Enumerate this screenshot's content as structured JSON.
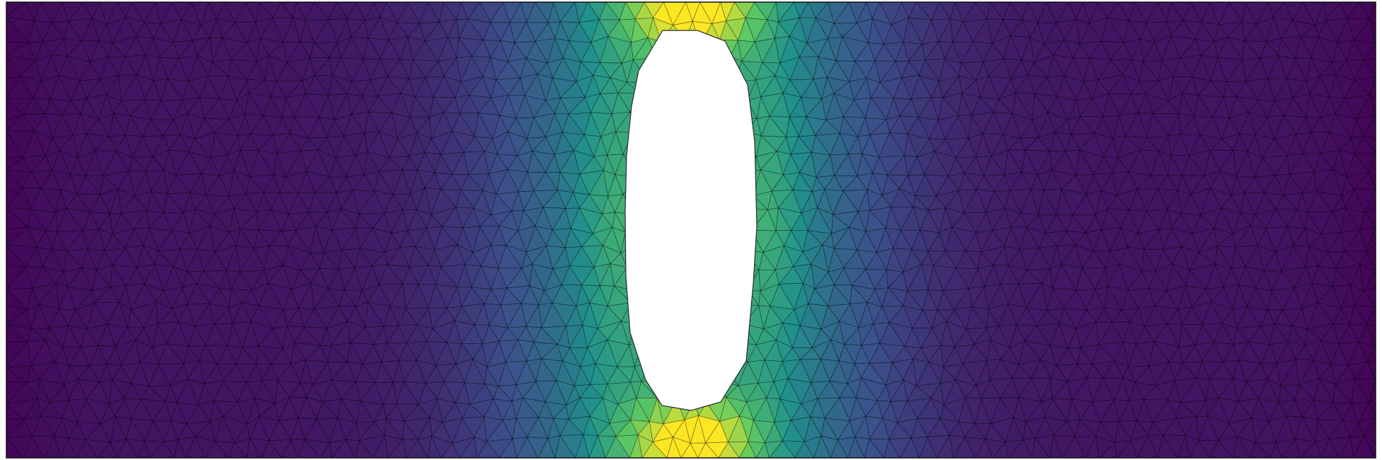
{
  "figure": {
    "description_type": "finite-element stress field on a plate with a central elliptical hole",
    "colormap": "viridis",
    "colors": {
      "background": "#ffffff",
      "plate_border": "#111111",
      "mesh_lines": "#000000",
      "hole_fill": "#ffffff",
      "hole_edge": "#2a2a2a"
    },
    "colormap_stops": [
      "#440154",
      "#3b528b",
      "#21918c",
      "#5ec962",
      "#fde725"
    ],
    "mesh": {
      "element_type": "triangle",
      "visible": true
    }
  }
}
